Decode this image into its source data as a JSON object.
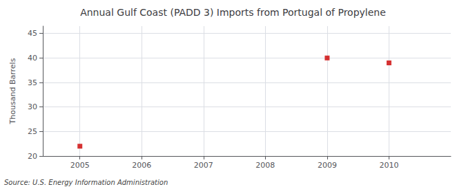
{
  "chart_data": {
    "type": "scatter",
    "title": "Annual Gulf Coast (PADD 3) Imports from Portugal of Propylene",
    "ylabel": "Thousand Barrels",
    "source": "Source: U.S. Energy Information Administration",
    "x": [
      2005,
      2009,
      2010
    ],
    "values": [
      22,
      40,
      39
    ],
    "color": "#CC0000",
    "marker": "square",
    "xlim": [
      2004.4,
      2011.0
    ],
    "xticks": [
      2005,
      2006,
      2007,
      2008,
      2009,
      2010
    ],
    "ylim": [
      20,
      46.5
    ],
    "yticks": [
      20,
      25,
      30,
      35,
      40,
      45
    ],
    "grid": true
  }
}
